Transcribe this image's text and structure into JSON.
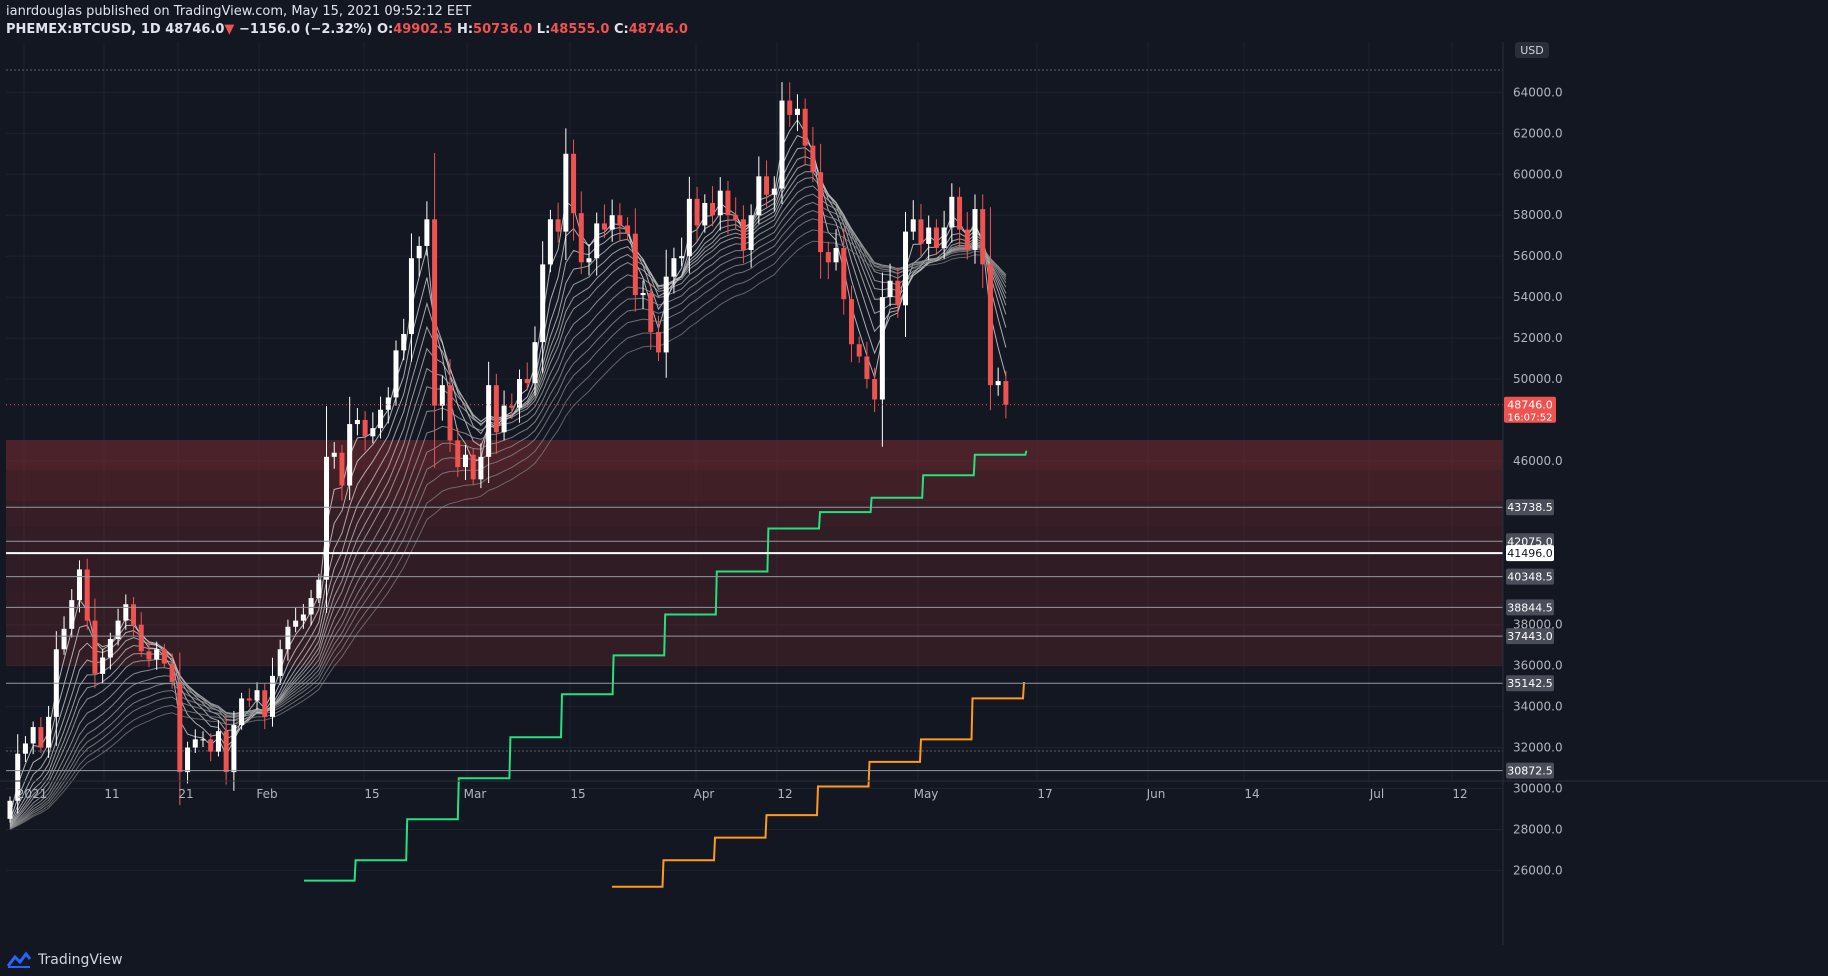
{
  "header": {
    "publisher": "ianrdouglas published on TradingView.com, May 15, 2021 09:52:12 EET",
    "symbol": "PHEMEX:BTCUSD, 1D",
    "last": "48746.0",
    "change": "−1156.0 (−2.32%)",
    "open_label": "O:",
    "open": "49902.5",
    "high_label": "H:",
    "high": "50736.0",
    "low_label": "L:",
    "low": "48555.0",
    "close_label": "C:",
    "close": "48746.0"
  },
  "footer": {
    "brand": "TradingView"
  },
  "colors": {
    "background": "#131722",
    "up_candle": "#ffffff",
    "down_candle": "#ef5350",
    "zone": "#7a2b2f",
    "green_line": "#26e07f",
    "orange_line": "#ff9a1f",
    "current_price": "#ef5350"
  },
  "chart_data": {
    "type": "candlestick",
    "currency": "USD",
    "x_tick_labels": [
      "2021",
      "11",
      "21",
      "Feb",
      "15",
      "Mar",
      "15",
      "Apr",
      "12",
      "May",
      "17",
      "Jun",
      "14",
      "Jul",
      "12"
    ],
    "y_tick_labels": [
      "26000.0",
      "28000.0",
      "30000.0",
      "32000.0",
      "34000.0",
      "36000.0",
      "38000.0",
      "46000.0",
      "50000.0",
      "52000.0",
      "54000.0",
      "56000.0",
      "58000.0",
      "60000.0",
      "62000.0",
      "64000.0"
    ],
    "ylim": [
      25000,
      65500
    ],
    "candle_closes": [
      29400,
      31700,
      32200,
      33000,
      32000,
      33500,
      36800,
      37800,
      39200,
      40700,
      38200,
      35600,
      36400,
      37300,
      38200,
      39000,
      38000,
      36700,
      36300,
      36800,
      36100,
      35200,
      30800,
      32000,
      32400,
      32400,
      31800,
      32800,
      30800,
      33100,
      34400,
      34300,
      34800,
      33500,
      35500,
      36800,
      37900,
      38200,
      38500,
      39300,
      40200,
      46200,
      46400,
      44800,
      47800,
      48000,
      47200,
      47600,
      48500,
      49100,
      51400,
      52200,
      55900,
      56500,
      57800,
      48700,
      49700,
      47000,
      45700,
      46300,
      45100,
      46200,
      49700,
      47400,
      48700,
      48600,
      50000,
      49800,
      51800,
      55600,
      57800,
      57200,
      61000,
      58100,
      55700,
      55900,
      57600,
      57300,
      58000,
      57500,
      57100,
      54100,
      54200,
      52300,
      51300,
      55000,
      55900,
      56000,
      58800,
      57500,
      58600,
      58000,
      59200,
      58000,
      57800,
      56300,
      58000,
      59900,
      59000,
      59300,
      63600,
      62900,
      63200,
      61400,
      60100,
      56200,
      55700,
      56400,
      53900,
      51700,
      51100,
      50000,
      49000,
      54000,
      54800,
      53600,
      57200,
      57800,
      56600,
      57400,
      56400,
      57400,
      58900,
      57300,
      56300,
      58300,
      55600,
      49700,
      49900,
      48746
    ],
    "green_step_line_values": [
      25500,
      25500,
      26500,
      26500,
      28500,
      28500,
      30500,
      30500,
      32500,
      32500,
      34600,
      34600,
      36500,
      36500,
      38500,
      38500,
      40600,
      40600,
      42700,
      42700,
      43500,
      43500,
      44200,
      44200,
      45300,
      45300,
      46300,
      46300,
      46500
    ],
    "orange_step_line_values": [
      25200,
      25200,
      26500,
      26500,
      27600,
      27600,
      28700,
      28700,
      30100,
      30100,
      31300,
      31300,
      32400,
      32400,
      34400,
      34400,
      35200
    ],
    "horizontal_levels": [
      {
        "label": "43738.5"
      },
      {
        "label": "42075.0"
      },
      {
        "label": "41496.0"
      },
      {
        "label": "40348.5"
      },
      {
        "label": "38844.5"
      },
      {
        "label": "37443.0"
      },
      {
        "label": "35142.5"
      },
      {
        "label": "30872.5"
      }
    ],
    "current_price": {
      "label": "48746.0",
      "countdown": "16:07:52"
    }
  }
}
